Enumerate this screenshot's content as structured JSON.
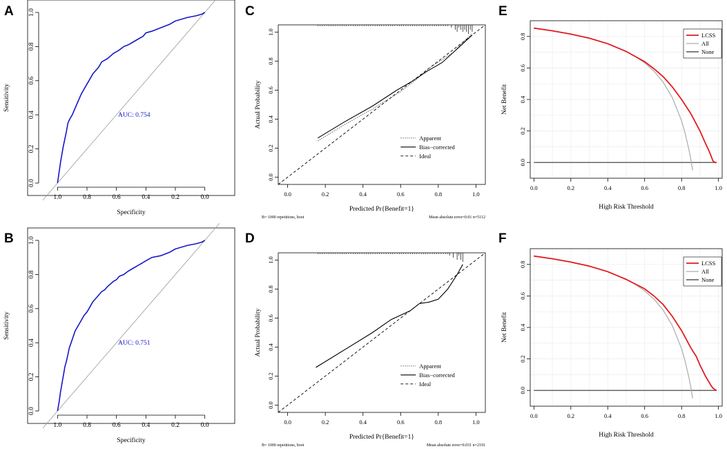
{
  "colors": {
    "roc_curve": "#1515c8",
    "auc_text": "#1515c8",
    "dca_model": "#e31a1c",
    "dca_all": "#aaaaaa",
    "dca_none": "#333333",
    "reference": "#999999"
  },
  "panels": {
    "A": "A",
    "B": "B",
    "C": "C",
    "D": "D",
    "E": "E",
    "F": "F"
  },
  "chart_data": [
    {
      "id": "A",
      "type": "line",
      "subtype": "roc",
      "xlabel": "Specificity",
      "ylabel": "Sensitivity",
      "xlim": [
        1.1,
        -0.1
      ],
      "ylim": [
        0,
        1
      ],
      "xticks": [
        "1.0",
        "0.8",
        "0.6",
        "0.4",
        "0.2",
        "0.0"
      ],
      "yticks": [
        "0.0",
        "0.2",
        "0.4",
        "0.6",
        "0.8",
        "1.0"
      ],
      "annotation": "AUC: 0.754",
      "series": [
        {
          "name": "ROC",
          "specificity": [
            1.0,
            0.99,
            0.98,
            0.97,
            0.96,
            0.95,
            0.94,
            0.93,
            0.92,
            0.9,
            0.88,
            0.86,
            0.84,
            0.82,
            0.8,
            0.78,
            0.76,
            0.74,
            0.72,
            0.7,
            0.68,
            0.66,
            0.64,
            0.62,
            0.6,
            0.58,
            0.55,
            0.52,
            0.5,
            0.46,
            0.42,
            0.4,
            0.36,
            0.3,
            0.24,
            0.2,
            0.12,
            0.06,
            0.02,
            0.0
          ],
          "sensitivity": [
            0.0,
            0.06,
            0.12,
            0.17,
            0.22,
            0.26,
            0.3,
            0.35,
            0.37,
            0.4,
            0.44,
            0.48,
            0.52,
            0.55,
            0.58,
            0.61,
            0.64,
            0.66,
            0.68,
            0.71,
            0.72,
            0.73,
            0.745,
            0.76,
            0.77,
            0.78,
            0.8,
            0.81,
            0.82,
            0.84,
            0.86,
            0.88,
            0.89,
            0.91,
            0.93,
            0.95,
            0.97,
            0.98,
            0.99,
            1.0
          ]
        }
      ]
    },
    {
      "id": "B",
      "type": "line",
      "subtype": "roc",
      "xlabel": "Specificity",
      "ylabel": "Sensitivity",
      "xlim": [
        1.1,
        -0.1
      ],
      "ylim": [
        0,
        1
      ],
      "xticks": [
        "1.0",
        "0.8",
        "0.6",
        "0.4",
        "0.2",
        "0.0"
      ],
      "yticks": [
        "0.0",
        "0.2",
        "0.4",
        "0.6",
        "0.8",
        "1.0"
      ],
      "annotation": "AUC: 0.751",
      "series": [
        {
          "name": "ROC",
          "specificity": [
            1.0,
            0.99,
            0.98,
            0.97,
            0.96,
            0.95,
            0.94,
            0.93,
            0.92,
            0.9,
            0.88,
            0.86,
            0.84,
            0.82,
            0.8,
            0.78,
            0.76,
            0.74,
            0.72,
            0.7,
            0.68,
            0.66,
            0.64,
            0.62,
            0.6,
            0.58,
            0.55,
            0.52,
            0.5,
            0.46,
            0.42,
            0.4,
            0.36,
            0.3,
            0.24,
            0.2,
            0.12,
            0.06,
            0.02,
            0.0
          ],
          "sensitivity": [
            0.0,
            0.05,
            0.11,
            0.16,
            0.21,
            0.26,
            0.29,
            0.33,
            0.37,
            0.42,
            0.47,
            0.5,
            0.53,
            0.56,
            0.58,
            0.61,
            0.64,
            0.66,
            0.68,
            0.7,
            0.71,
            0.73,
            0.745,
            0.76,
            0.77,
            0.79,
            0.8,
            0.82,
            0.83,
            0.85,
            0.87,
            0.88,
            0.9,
            0.91,
            0.93,
            0.95,
            0.97,
            0.98,
            0.99,
            1.0
          ]
        }
      ]
    },
    {
      "id": "C",
      "type": "line",
      "subtype": "calibration",
      "xlabel": "Predicted Pr{Benefit=1}",
      "ylabel": "Actual Probability",
      "xlim": [
        -0.05,
        1.05
      ],
      "ylim": [
        -0.05,
        1.05
      ],
      "xticks": [
        "0.0",
        "0.2",
        "0.4",
        "0.6",
        "0.8",
        "1.0"
      ],
      "yticks": [
        "0.0",
        "0.2",
        "0.4",
        "0.6",
        "0.8",
        "1.0"
      ],
      "footer_left": "B= 1000 repetitions, boot",
      "footer_right": "Mean absolute error=0.01 n=5112",
      "legend": [
        "Apparent",
        "Bias−corrected",
        "Ideal"
      ],
      "series": [
        {
          "name": "Apparent",
          "x": [
            0.16,
            0.3,
            0.45,
            0.6,
            0.68,
            0.75,
            0.82,
            0.88,
            0.93,
            0.98
          ],
          "y": [
            0.25,
            0.36,
            0.47,
            0.59,
            0.67,
            0.75,
            0.81,
            0.86,
            0.93,
            0.99
          ]
        },
        {
          "name": "Bias−corrected",
          "x": [
            0.16,
            0.3,
            0.45,
            0.58,
            0.66,
            0.74,
            0.82,
            0.88,
            0.93,
            0.98
          ],
          "y": [
            0.27,
            0.38,
            0.49,
            0.6,
            0.66,
            0.73,
            0.79,
            0.86,
            0.92,
            0.98
          ]
        },
        {
          "name": "Ideal",
          "x": [
            -0.05,
            1.05
          ],
          "y": [
            -0.05,
            1.05
          ]
        }
      ],
      "rug": [
        0.87,
        0.89,
        0.9,
        0.91,
        0.92,
        0.93,
        0.94,
        0.95,
        0.96,
        0.97,
        0.98
      ]
    },
    {
      "id": "D",
      "type": "line",
      "subtype": "calibration",
      "xlabel": "Predicted Pr{Benefit=1}",
      "ylabel": "Actual Probability",
      "xlim": [
        -0.05,
        1.05
      ],
      "ylim": [
        -0.05,
        1.05
      ],
      "xticks": [
        "0.0",
        "0.2",
        "0.4",
        "0.6",
        "0.8",
        "1.0"
      ],
      "yticks": [
        "0.0",
        "0.2",
        "0.4",
        "0.6",
        "0.8",
        "1.0"
      ],
      "footer_left": "B= 1000 repetitions, boot",
      "footer_right": "Mean absolute error=0.031 n=2191",
      "legend": [
        "Apparent",
        "Bias−corrected",
        "Ideal"
      ],
      "series": [
        {
          "name": "Apparent",
          "x": [
            0.15,
            0.3,
            0.45,
            0.55,
            0.65,
            0.7,
            0.75,
            0.8,
            0.85,
            0.9,
            0.93
          ],
          "y": [
            0.26,
            0.38,
            0.5,
            0.59,
            0.65,
            0.7,
            0.71,
            0.73,
            0.8,
            0.9,
            0.97
          ]
        },
        {
          "name": "Bias−corrected",
          "x": [
            0.15,
            0.3,
            0.45,
            0.55,
            0.65,
            0.7,
            0.75,
            0.8,
            0.85,
            0.9,
            0.93
          ],
          "y": [
            0.26,
            0.38,
            0.5,
            0.59,
            0.65,
            0.7,
            0.71,
            0.73,
            0.8,
            0.9,
            0.97
          ]
        },
        {
          "name": "Ideal",
          "x": [
            -0.05,
            1.05
          ],
          "y": [
            -0.05,
            1.05
          ]
        }
      ],
      "rug": [
        0.86,
        0.88,
        0.9,
        0.91,
        0.92,
        0.93
      ]
    },
    {
      "id": "E",
      "type": "line",
      "subtype": "decision_curve",
      "xlabel": "High Risk Threshold",
      "ylabel": "Net Benefit",
      "xlim": [
        -0.02,
        1.02
      ],
      "ylim": [
        -0.1,
        0.9
      ],
      "xticks": [
        "0.0",
        "0.2",
        "0.4",
        "0.6",
        "0.8",
        "1.0"
      ],
      "yticks": [
        "0.0",
        "0.2",
        "0.4",
        "0.6",
        "0.8"
      ],
      "grid": true,
      "legend": [
        "LCSS",
        "All",
        "None"
      ],
      "series": [
        {
          "name": "LCSS",
          "x": [
            0.0,
            0.1,
            0.2,
            0.3,
            0.4,
            0.5,
            0.6,
            0.65,
            0.7,
            0.75,
            0.8,
            0.85,
            0.9,
            0.93,
            0.95,
            0.96,
            0.97,
            0.98,
            0.99
          ],
          "y": [
            0.853,
            0.836,
            0.815,
            0.789,
            0.754,
            0.705,
            0.64,
            0.595,
            0.545,
            0.48,
            0.4,
            0.31,
            0.2,
            0.12,
            0.07,
            0.04,
            0.01,
            0.0,
            0.0
          ]
        },
        {
          "name": "All",
          "x": [
            0.0,
            0.1,
            0.2,
            0.3,
            0.4,
            0.5,
            0.55,
            0.6,
            0.65,
            0.7,
            0.75,
            0.8,
            0.82,
            0.84,
            0.85,
            0.86
          ],
          "y": [
            0.853,
            0.837,
            0.816,
            0.79,
            0.755,
            0.706,
            0.673,
            0.632,
            0.58,
            0.51,
            0.412,
            0.265,
            0.183,
            0.081,
            0.02,
            -0.05
          ]
        },
        {
          "name": "None",
          "x": [
            0.0,
            0.99
          ],
          "y": [
            0.0,
            0.0
          ]
        }
      ]
    },
    {
      "id": "F",
      "type": "line",
      "subtype": "decision_curve",
      "xlabel": "High Risk Threshold",
      "ylabel": "Net Benefit",
      "xlim": [
        -0.02,
        1.02
      ],
      "ylim": [
        -0.1,
        0.9
      ],
      "xticks": [
        "0.0",
        "0.2",
        "0.4",
        "0.6",
        "0.8",
        "1.0"
      ],
      "yticks": [
        "0.0",
        "0.2",
        "0.4",
        "0.6",
        "0.8"
      ],
      "grid": true,
      "legend": [
        "LCSS",
        "All",
        "None"
      ],
      "series": [
        {
          "name": "LCSS",
          "x": [
            0.0,
            0.1,
            0.2,
            0.3,
            0.4,
            0.5,
            0.6,
            0.65,
            0.7,
            0.75,
            0.8,
            0.85,
            0.88,
            0.9,
            0.93,
            0.95,
            0.96,
            0.97,
            0.98,
            0.99
          ],
          "y": [
            0.853,
            0.836,
            0.815,
            0.789,
            0.754,
            0.705,
            0.645,
            0.6,
            0.545,
            0.47,
            0.38,
            0.27,
            0.215,
            0.16,
            0.09,
            0.05,
            0.03,
            0.015,
            0.005,
            0.0
          ]
        },
        {
          "name": "All",
          "x": [
            0.0,
            0.1,
            0.2,
            0.3,
            0.4,
            0.5,
            0.55,
            0.6,
            0.65,
            0.7,
            0.75,
            0.8,
            0.82,
            0.84,
            0.85,
            0.86
          ],
          "y": [
            0.853,
            0.837,
            0.816,
            0.79,
            0.755,
            0.706,
            0.673,
            0.632,
            0.58,
            0.51,
            0.412,
            0.265,
            0.183,
            0.081,
            0.02,
            -0.05
          ]
        },
        {
          "name": "None",
          "x": [
            0.0,
            0.99
          ],
          "y": [
            0.0,
            0.0
          ]
        }
      ]
    }
  ]
}
